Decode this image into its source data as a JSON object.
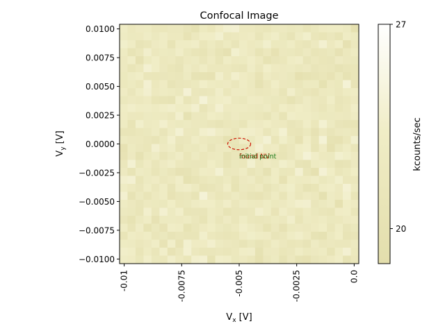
{
  "chart_data": {
    "type": "heatmap",
    "title": "Confocal Image",
    "xlabel_main": "V",
    "xlabel_sub": "x",
    "xlabel_unit": " [V]",
    "ylabel_main": "V",
    "ylabel_sub": "y",
    "ylabel_unit": " [V]",
    "xlim": [
      -0.0102,
      0.0002
    ],
    "ylim": [
      0.0104,
      -0.0104
    ],
    "x_ticks": [
      -0.01,
      -0.0075,
      -0.005,
      -0.0025,
      0.0
    ],
    "x_tick_labels": [
      "-0.01",
      "-0.0075",
      "-0.005",
      "-0.0025",
      "0.0"
    ],
    "y_ticks": [
      -0.01,
      -0.0075,
      -0.005,
      -0.0025,
      0.0,
      0.0025,
      0.005,
      0.0075,
      0.01
    ],
    "y_tick_labels": [
      "−0.0100",
      "−0.0075",
      "−0.0050",
      "−0.0025",
      "0.0000",
      "0.0025",
      "0.0050",
      "0.0075",
      "0.0100"
    ],
    "grid": false,
    "colorbar": {
      "label": "kcounts/sec",
      "min": 18.8,
      "max": 27,
      "ticks": [
        20,
        27
      ],
      "tick_labels": [
        "20",
        "27"
      ],
      "colors": [
        "#e3deac",
        "#f0edc6",
        "#ffffff"
      ]
    },
    "heatmap_grid": {
      "cols": 30,
      "rows": 30,
      "value_range": [
        19.5,
        24.5
      ]
    },
    "annotations": [
      {
        "text": "found NV",
        "x": -0.005,
        "y": -0.0011,
        "color": "#cc1100"
      },
      {
        "text": "initial point",
        "x": -0.005,
        "y": -0.0011,
        "color": "#1a7a1a"
      }
    ],
    "markers": [
      {
        "kind": "dashed-circle",
        "x": -0.005,
        "y": 0.0,
        "radius": 0.0005,
        "color": "#cc1100"
      }
    ]
  }
}
